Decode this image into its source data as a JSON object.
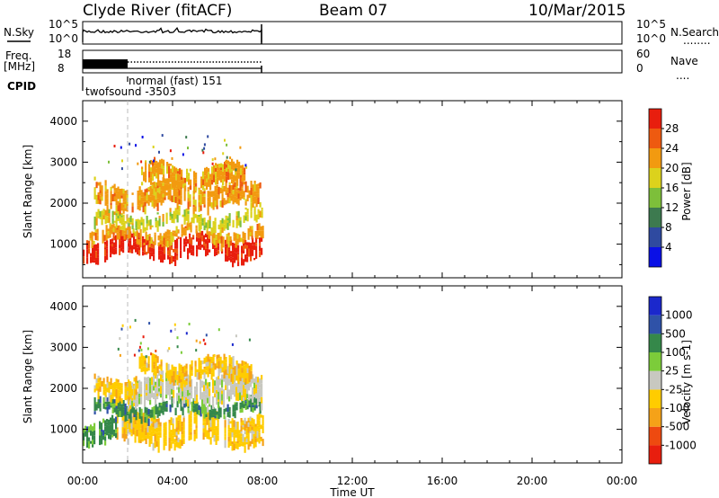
{
  "header": {
    "station": "Clyde River (fitACF)",
    "beam": "Beam 07",
    "date": "10/Mar/2015"
  },
  "nsky_panel": {
    "left_label": "N.Sky",
    "left_ticks": [
      "10^5",
      "10^0"
    ],
    "right_ticks": [
      "10^5",
      "10^0"
    ],
    "right_label": "N.Search",
    "right_legend_dots": "........"
  },
  "freq_panel": {
    "left_label_top": "Freq.",
    "left_label_bottom": "[MHz]",
    "left_ticks": [
      "18",
      "8"
    ],
    "right_ticks": [
      "60",
      "0"
    ],
    "right_label": "Nave",
    "right_legend_dots": "...."
  },
  "cpid_panel": {
    "label": "CPID",
    "mode_1": "twofsound -3503",
    "mode_2": "normal (fast) 151"
  },
  "colors": {
    "power_scale": [
      "#0a10e6",
      "#2f4aa0",
      "#3d7a4f",
      "#7dbf3a",
      "#dcd21c",
      "#f29a10",
      "#ee5a10",
      "#e81e0e"
    ],
    "velocity_scale": [
      "#e81e0e",
      "#ee4a10",
      "#f5a218",
      "#ffcc00",
      "#c8c8c0",
      "#7ccc3a",
      "#35884a",
      "#2f52a8",
      "#1b28cc"
    ]
  },
  "chart_data": [
    {
      "type": "heatmap",
      "name": "power",
      "ylabel": "Slant Range [km]",
      "yticks": [
        "1000",
        "2000",
        "3000",
        "4000"
      ],
      "ylim": [
        180,
        4500
      ],
      "xlim_hours": [
        0,
        24
      ],
      "data_extent_hours": [
        0,
        8
      ],
      "colorbar_label": "Power [dB]",
      "colorbar_ticks": [
        "4",
        "8",
        "12",
        "16",
        "20",
        "24",
        "28"
      ],
      "colorbar_range": [
        0,
        32
      ],
      "bands": [
        {
          "range_km": [
            750,
            1150
          ],
          "value": 29,
          "coverage_hours": [
            0,
            8
          ]
        },
        {
          "range_km": [
            1150,
            1350
          ],
          "value": 22,
          "coverage_hours": [
            0.3,
            8
          ]
        },
        {
          "range_km": [
            1500,
            1750
          ],
          "value": 18,
          "coverage_hours": [
            0.5,
            8
          ]
        },
        {
          "range_km": [
            1950,
            2450
          ],
          "value": 23,
          "coverage_hours": [
            0.5,
            7.9
          ]
        },
        {
          "range_km": [
            2500,
            2900
          ],
          "value": 20,
          "coverage_hours": [
            2.6,
            7.2
          ]
        }
      ]
    },
    {
      "type": "heatmap",
      "name": "velocity",
      "ylabel": "Slant Range [km]",
      "yticks": [
        "1000",
        "2000",
        "3000",
        "4000"
      ],
      "ylim": [
        180,
        4500
      ],
      "xlim_hours": [
        0,
        24
      ],
      "data_extent_hours": [
        0,
        8
      ],
      "colorbar_label": "Velocity [m s-1]",
      "colorbar_ticks": [
        "-1000",
        "-500",
        "-100",
        "-25",
        "25",
        "100",
        "500",
        "1000"
      ],
      "colorbar_range": [
        -1500,
        1500
      ],
      "bands": [
        {
          "range_km": [
            700,
            1350
          ],
          "value": -100,
          "coverage_hours": [
            1.5,
            8
          ]
        },
        {
          "range_km": [
            700,
            1200
          ],
          "value": 100,
          "coverage_hours": [
            0,
            1.5
          ]
        },
        {
          "range_km": [
            1400,
            1650
          ],
          "value": 100,
          "coverage_hours": [
            0.5,
            8
          ]
        },
        {
          "range_km": [
            1700,
            2300
          ],
          "value": 0,
          "coverage_hours": [
            2,
            8
          ]
        },
        {
          "range_km": [
            1900,
            2300
          ],
          "value": -100,
          "coverage_hours": [
            0.5,
            2.5
          ]
        },
        {
          "range_km": [
            2300,
            2700
          ],
          "value": -100,
          "coverage_hours": [
            2.5,
            7.5
          ]
        }
      ]
    }
  ],
  "x_axis": {
    "ticks": [
      "00:00",
      "04:00",
      "08:00",
      "12:00",
      "16:00",
      "20:00",
      "00:00"
    ],
    "label": "Time UT"
  }
}
